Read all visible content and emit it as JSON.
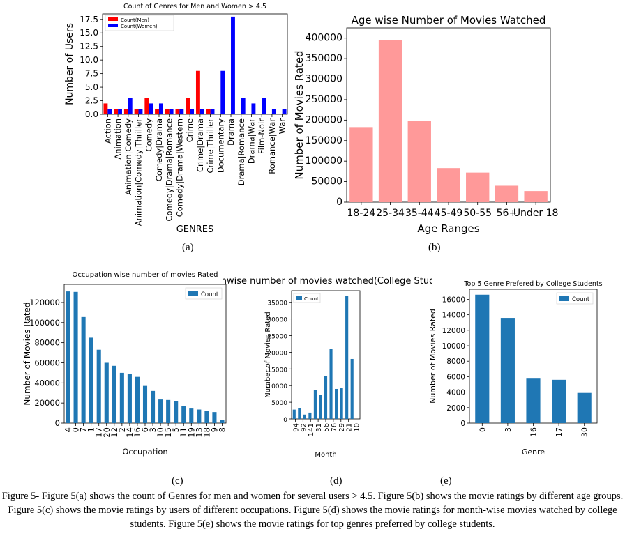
{
  "charts": [
    {
      "type": "bar",
      "title": "Count of Genres for Men and Women > 4.5",
      "xlabel": "GENRES",
      "ylabel": "Number of Users",
      "ylim": [
        0,
        18.5
      ],
      "yticks": [
        "0.0",
        "2.5",
        "5.0",
        "7.5",
        "10.0",
        "12.5",
        "15.0",
        "17.5"
      ],
      "categories": [
        "Action",
        "Animation",
        "Animation|Comedy",
        "Animation|Comedy|Thriller",
        "Comedy",
        "Comedy|Drama",
        "Comedy|Drama|Romance",
        "Comedy|Drama|Western",
        "Crime",
        "Crime|Drama",
        "Crime|Thriller",
        "Documentary",
        "Drama",
        "Drama|Romance",
        "Drama|War",
        "Film-Noir",
        "Romance|War",
        "War"
      ],
      "series": [
        {
          "name": "Count(Men)",
          "color": "#ff0000",
          "values": [
            2,
            1,
            1,
            1,
            3,
            1,
            1,
            1,
            3,
            8,
            1,
            0,
            0,
            0,
            0,
            0,
            0,
            0
          ]
        },
        {
          "name": "Count(Women)",
          "color": "#0000ff",
          "values": [
            1,
            1,
            3,
            1,
            2,
            2,
            1,
            1,
            1,
            1,
            1,
            8,
            18,
            3,
            2,
            3,
            1,
            1
          ]
        }
      ],
      "legend": "top-left"
    },
    {
      "type": "bar",
      "title": "Age wise Number of Movies Watched",
      "xlabel": "Age Ranges",
      "ylabel": "Number of Movies Rated",
      "ylim": [
        0,
        425000
      ],
      "yticks": [
        "0",
        "50000",
        "100000",
        "150000",
        "200000",
        "250000",
        "300000",
        "350000",
        "400000"
      ],
      "categories": [
        "18-24",
        "25-34",
        "35-44",
        "45-49",
        "50-55",
        "56+",
        "Under 18"
      ],
      "series": [
        {
          "name": "",
          "color": "#ff9999",
          "values": [
            183000,
            395000,
            198000,
            83000,
            72000,
            40000,
            27000
          ]
        }
      ]
    },
    {
      "type": "bar",
      "title": "Occupation wise number of movies Rated",
      "xlabel": "Occupation",
      "ylabel": "Number of Movies Rated",
      "ylim": [
        0,
        138000
      ],
      "yticks": [
        "0",
        "20000",
        "40000",
        "60000",
        "80000",
        "100000",
        "120000"
      ],
      "categories": [
        "4",
        "0",
        "7",
        "1",
        "17",
        "20",
        "12",
        "2",
        "14",
        "16",
        "6",
        "3",
        "10",
        "15",
        "5",
        "11",
        "19",
        "13",
        "18",
        "9",
        "8"
      ],
      "series": [
        {
          "name": "Count",
          "color": "#1f77b4",
          "values": [
            131000,
            130500,
            105500,
            85000,
            73000,
            60000,
            57000,
            50000,
            49000,
            46000,
            37000,
            32000,
            23500,
            23000,
            21500,
            17000,
            14500,
            13500,
            12000,
            11000,
            2800
          ]
        }
      ],
      "legend": "top-right"
    },
    {
      "type": "bar",
      "title": "Monthwise number of movies watched(College Student)",
      "xlabel": "Month",
      "ylabel": "Number of Movies Rated",
      "ylim": [
        0,
        38500
      ],
      "yticks": [
        "0",
        "5000",
        "10000",
        "15000",
        "20000",
        "25000",
        "30000",
        "35000"
      ],
      "categories": [
        "9",
        "4",
        "12",
        "1",
        "4",
        "3",
        "5",
        "6",
        "2",
        "7",
        "8",
        "11",
        "10"
      ],
      "tick_text": [
        "94",
        "92",
        "141",
        "31",
        "56",
        "76",
        "29",
        "21",
        "10"
      ],
      "series": [
        {
          "name": "Count",
          "color": "#1f77b4",
          "values": [
            2800,
            3200,
            1300,
            1900,
            8700,
            7300,
            12900,
            21000,
            9000,
            9200,
            37000,
            18000,
            0
          ]
        }
      ],
      "legend": "top-left"
    },
    {
      "type": "bar",
      "title": "Top 5 Genre Prefered by College Students",
      "xlabel": "Genre",
      "ylabel": "Number of Movies Rated",
      "ylim": [
        0,
        17300
      ],
      "yticks": [
        "0",
        "2000",
        "4000",
        "6000",
        "8000",
        "10000",
        "12000",
        "14000",
        "16000"
      ],
      "categories": [
        "0",
        "3",
        "16",
        "17",
        "30"
      ],
      "series": [
        {
          "name": "Count",
          "color": "#1f77b4",
          "values": [
            16600,
            13600,
            5750,
            5600,
            3900
          ]
        }
      ],
      "legend": "top-right"
    }
  ],
  "sublabels": [
    "(a)",
    "(b)",
    "(c)",
    "(d)",
    "(e)"
  ],
  "caption": "Figure 5- Figure 5(a) shows the count of Genres for men and women for several users > 4.5. Figure 5(b) shows the movie ratings by different age groups. Figure 5(c) shows the movie ratings by users of different occupations. Figure 5(d) shows the movie ratings for month-wise movies watched by college students. Figure 5(e) shows the movie ratings for top genres preferred by college students."
}
